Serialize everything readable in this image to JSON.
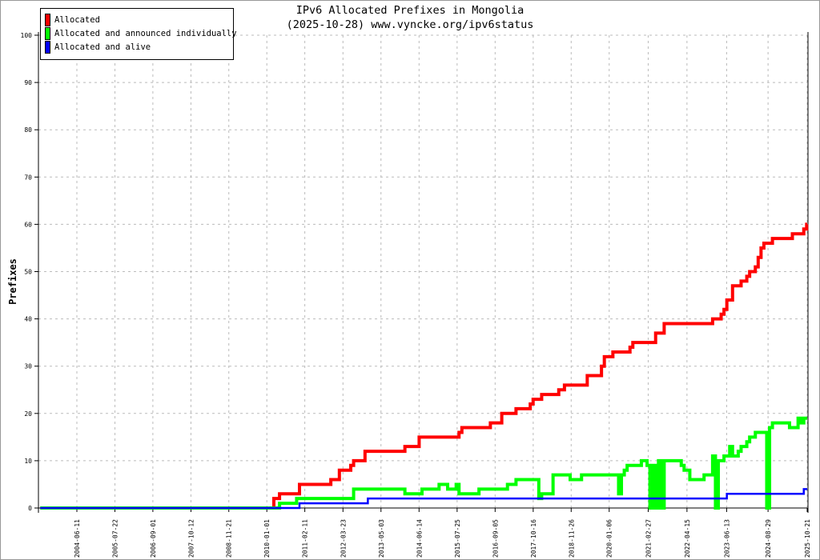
{
  "chart_data": {
    "type": "line",
    "title": "IPv6 Allocated Prefixes in Mongolia",
    "subtitle": "(2025-10-28) www.vyncke.org/ipv6status",
    "xlabel": "",
    "ylabel": "Prefixes",
    "ylim": [
      0,
      100
    ],
    "yticks": [
      "0",
      "10",
      "20",
      "30",
      "40",
      "50",
      "60",
      "70",
      "80",
      "90",
      "100"
    ],
    "xticks": [
      "2004-06-11",
      "2005-07-22",
      "2006-09-01",
      "2007-10-12",
      "2008-11-21",
      "2010-01-01",
      "2011-02-11",
      "2012-03-23",
      "2013-05-03",
      "2014-06-14",
      "2015-07-25",
      "2016-09-05",
      "2017-10-16",
      "2018-11-26",
      "2020-01-06",
      "2021-02-27",
      "2022-04-15",
      "2023-06-13",
      "2024-08-29",
      "2025-10-21"
    ],
    "grid": true,
    "legend_position": "top-left",
    "series": [
      {
        "name": "Allocated",
        "color": "#ff0000",
        "step": true,
        "points": [
          [
            "2003-05",
            0
          ],
          [
            "2010-03",
            2
          ],
          [
            "2010-05",
            3
          ],
          [
            "2010-12",
            5
          ],
          [
            "2011-11",
            6
          ],
          [
            "2012-02",
            8
          ],
          [
            "2012-06",
            9
          ],
          [
            "2012-07",
            10
          ],
          [
            "2012-11",
            12
          ],
          [
            "2014-01",
            13
          ],
          [
            "2014-06",
            15
          ],
          [
            "2015-08",
            16
          ],
          [
            "2015-09",
            17
          ],
          [
            "2016-07",
            18
          ],
          [
            "2016-11",
            20
          ],
          [
            "2017-04",
            21
          ],
          [
            "2017-09",
            22
          ],
          [
            "2017-10",
            23
          ],
          [
            "2018-01",
            24
          ],
          [
            "2018-07",
            25
          ],
          [
            "2018-09",
            26
          ],
          [
            "2019-05",
            28
          ],
          [
            "2019-10",
            30
          ],
          [
            "2019-11",
            32
          ],
          [
            "2020-02",
            33
          ],
          [
            "2020-08",
            34
          ],
          [
            "2020-09",
            35
          ],
          [
            "2021-05",
            37
          ],
          [
            "2021-08",
            39
          ],
          [
            "2023-01",
            40
          ],
          [
            "2023-04",
            41
          ],
          [
            "2023-05",
            42
          ],
          [
            "2023-06",
            44
          ],
          [
            "2023-08",
            47
          ],
          [
            "2023-11",
            48
          ],
          [
            "2024-01",
            49
          ],
          [
            "2024-02",
            50
          ],
          [
            "2024-04",
            51
          ],
          [
            "2024-05",
            53
          ],
          [
            "2024-06",
            55
          ],
          [
            "2024-07",
            56
          ],
          [
            "2024-10",
            57
          ],
          [
            "2025-05",
            58
          ],
          [
            "2025-09",
            59
          ],
          [
            "2025-10",
            60
          ],
          [
            "2025-10-21",
            60
          ]
        ]
      },
      {
        "name": "Allocated and announced individually",
        "color": "#00ff00",
        "step": true,
        "points": [
          [
            "2003-05",
            0
          ],
          [
            "2010-05",
            1
          ],
          [
            "2010-11",
            2
          ],
          [
            "2012-07",
            4
          ],
          [
            "2014-01",
            3
          ],
          [
            "2014-07",
            4
          ],
          [
            "2015-01",
            5
          ],
          [
            "2015-04",
            4
          ],
          [
            "2015-07",
            5
          ],
          [
            "2015-08",
            3
          ],
          [
            "2016-03",
            4
          ],
          [
            "2017-01",
            5
          ],
          [
            "2017-04",
            6
          ],
          [
            "2017-12",
            2
          ],
          [
            "2018-01",
            3
          ],
          [
            "2018-05",
            7
          ],
          [
            "2018-11",
            6
          ],
          [
            "2019-03",
            7
          ],
          [
            "2020-04",
            3
          ],
          [
            "2020-05",
            7
          ],
          [
            "2020-06",
            8
          ],
          [
            "2020-07",
            9
          ],
          [
            "2020-12",
            10
          ],
          [
            "2021-02",
            9
          ],
          [
            "2021-03",
            0
          ],
          [
            "2021-04",
            9
          ],
          [
            "2021-05",
            0
          ],
          [
            "2021-06",
            10
          ],
          [
            "2021-07",
            0
          ],
          [
            "2021-08",
            10
          ],
          [
            "2022-02",
            9
          ],
          [
            "2022-03",
            8
          ],
          [
            "2022-05",
            6
          ],
          [
            "2022-10",
            7
          ],
          [
            "2023-01",
            11
          ],
          [
            "2023-02",
            0
          ],
          [
            "2023-03",
            10
          ],
          [
            "2023-05",
            11
          ],
          [
            "2023-07",
            13
          ],
          [
            "2023-08",
            11
          ],
          [
            "2023-10",
            12
          ],
          [
            "2023-11",
            13
          ],
          [
            "2024-01",
            14
          ],
          [
            "2024-02",
            15
          ],
          [
            "2024-04",
            16
          ],
          [
            "2024-08",
            0
          ],
          [
            "2024-09",
            17
          ],
          [
            "2024-10",
            18
          ],
          [
            "2025-04",
            17
          ],
          [
            "2025-07",
            19
          ],
          [
            "2025-08",
            18
          ],
          [
            "2025-09",
            19
          ],
          [
            "2025-10-21",
            19
          ]
        ]
      },
      {
        "name": "Allocated and alive",
        "color": "#0000ff",
        "step": true,
        "points": [
          [
            "2003-05",
            0
          ],
          [
            "2010-12",
            1
          ],
          [
            "2012-12",
            2
          ],
          [
            "2023-06",
            3
          ],
          [
            "2025-09",
            4
          ],
          [
            "2025-10-21",
            4
          ]
        ]
      }
    ]
  }
}
